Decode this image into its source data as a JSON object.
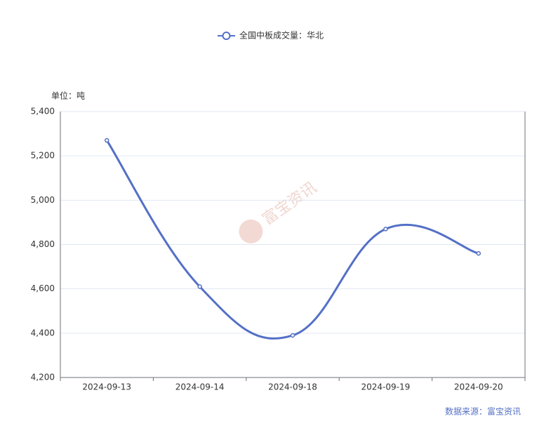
{
  "chart_data": {
    "type": "line",
    "legend_label": "全国中板成交量：华北",
    "y_unit_label": "单位：吨",
    "source": "数据来源：富宝资讯",
    "watermark": "富宝资讯",
    "categories": [
      "2024-09-13",
      "2024-09-14",
      "2024-09-18",
      "2024-09-19",
      "2024-09-20"
    ],
    "series": [
      {
        "name": "全国中板成交量：华北",
        "color": "#5470c6",
        "values": [
          5270,
          4610,
          4390,
          4870,
          4760
        ]
      }
    ],
    "ylim": [
      4200,
      5400
    ],
    "yticks": [
      {
        "value": 4200,
        "label": "4,200"
      },
      {
        "value": 4400,
        "label": "4,400"
      },
      {
        "value": 4600,
        "label": "4,600"
      },
      {
        "value": 4800,
        "label": "4,800"
      },
      {
        "value": 5000,
        "label": "5,000"
      },
      {
        "value": 5200,
        "label": "5,200"
      },
      {
        "value": 5400,
        "label": "5,400"
      }
    ],
    "grid": true,
    "smooth": true
  }
}
